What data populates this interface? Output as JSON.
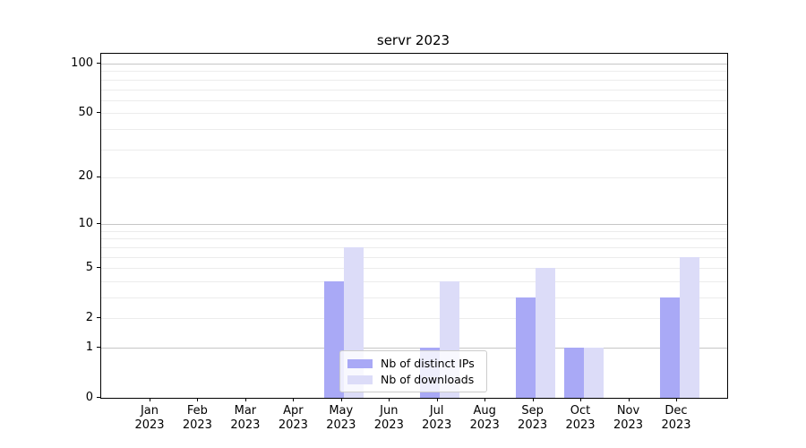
{
  "figure": {
    "title": "servr 2023"
  },
  "chart_data": {
    "type": "bar",
    "title": "servr 2023",
    "categories": [
      "Jan",
      "Feb",
      "Mar",
      "Apr",
      "May",
      "Jun",
      "Jul",
      "Aug",
      "Sep",
      "Oct",
      "Nov",
      "Dec"
    ],
    "category_year": "2023",
    "series": [
      {
        "name": "Nb of distinct IPs",
        "color": "#a9a9f6",
        "values": [
          0,
          0,
          0,
          0,
          4,
          0,
          1,
          0,
          3,
          1,
          0,
          3
        ]
      },
      {
        "name": "Nb of downloads",
        "color": "#dcdcf8",
        "values": [
          0,
          0,
          0,
          0,
          7,
          0,
          4,
          0,
          5,
          1,
          0,
          6
        ]
      }
    ],
    "y_scale": "log1p",
    "y_ticks": [
      0,
      1,
      2,
      5,
      10,
      20,
      50,
      100
    ],
    "y_major_grid": [
      1,
      10,
      100
    ],
    "y_minor_grid": [
      2,
      3,
      4,
      5,
      6,
      7,
      8,
      9,
      20,
      30,
      40,
      50,
      60,
      70,
      80,
      90
    ],
    "ylim": [
      0,
      115
    ],
    "grid": true,
    "legend_position": "lower center",
    "colors": {
      "axis": "#000000",
      "grid_major": "#c6c6c6",
      "grid_minor": "#ececec",
      "legend_border": "#cccccc"
    }
  }
}
